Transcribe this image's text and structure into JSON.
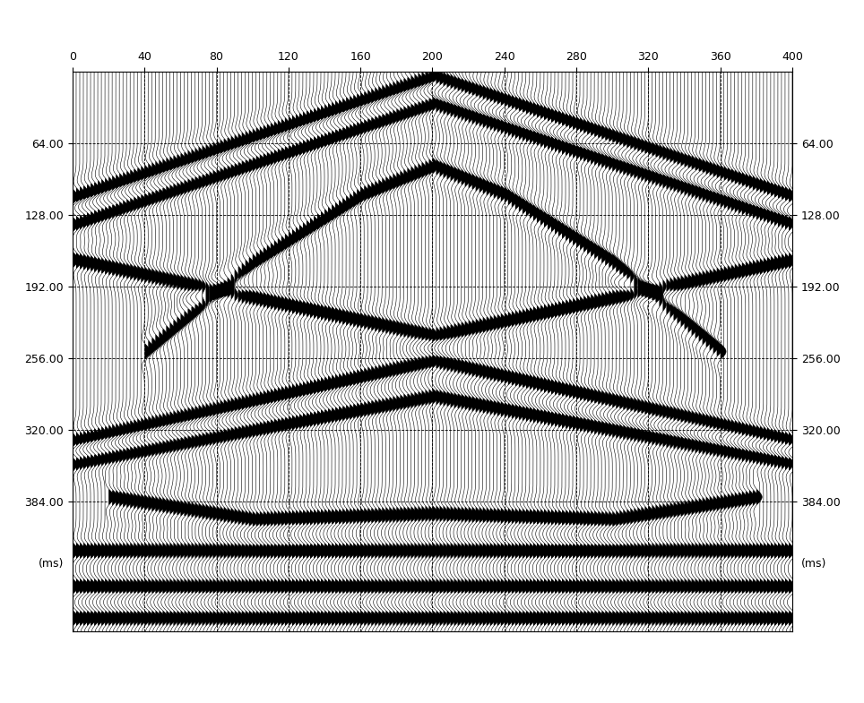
{
  "chart_data": {
    "type": "wiggle",
    "xlim": [
      0,
      400
    ],
    "ylim": [
      0,
      500
    ],
    "xticks": [
      0,
      40,
      80,
      120,
      160,
      200,
      240,
      280,
      320,
      360,
      400
    ],
    "yticks": [
      {
        "value": 64,
        "label": "64.00"
      },
      {
        "value": 128,
        "label": "128.00"
      },
      {
        "value": 192,
        "label": "192.00"
      },
      {
        "value": 256,
        "label": "256.00"
      },
      {
        "value": 320,
        "label": "320.00"
      },
      {
        "value": 384,
        "label": "384.00"
      }
    ],
    "y_label": "(ms)",
    "grid": true,
    "color": "#000000",
    "trace_interval": 2,
    "events": [
      {
        "points": [
          [
            0,
            112
          ],
          [
            200,
            4
          ],
          [
            400,
            112
          ]
        ]
      },
      {
        "points": [
          [
            0,
            136
          ],
          [
            200,
            28
          ],
          [
            400,
            136
          ]
        ]
      },
      {
        "points": [
          [
            40,
            250
          ],
          [
            100,
            170
          ],
          [
            160,
            110
          ],
          [
            200,
            84
          ],
          [
            240,
            110
          ],
          [
            300,
            170
          ],
          [
            360,
            250
          ]
        ]
      },
      {
        "points": [
          [
            0,
            168
          ],
          [
            200,
            236
          ],
          [
            400,
            168
          ]
        ]
      },
      {
        "points": [
          [
            0,
            330
          ],
          [
            200,
            258
          ],
          [
            400,
            330
          ]
        ]
      },
      {
        "points": [
          [
            0,
            350
          ],
          [
            200,
            290
          ],
          [
            400,
            350
          ]
        ]
      },
      {
        "points": [
          [
            20,
            380
          ],
          [
            100,
            400
          ],
          [
            200,
            395
          ],
          [
            300,
            400
          ],
          [
            380,
            380
          ]
        ]
      },
      {
        "points": [
          [
            0,
            428
          ],
          [
            400,
            428
          ]
        ]
      },
      {
        "points": [
          [
            0,
            460
          ],
          [
            400,
            460
          ]
        ]
      },
      {
        "points": [
          [
            0,
            488
          ],
          [
            400,
            488
          ]
        ]
      }
    ]
  }
}
